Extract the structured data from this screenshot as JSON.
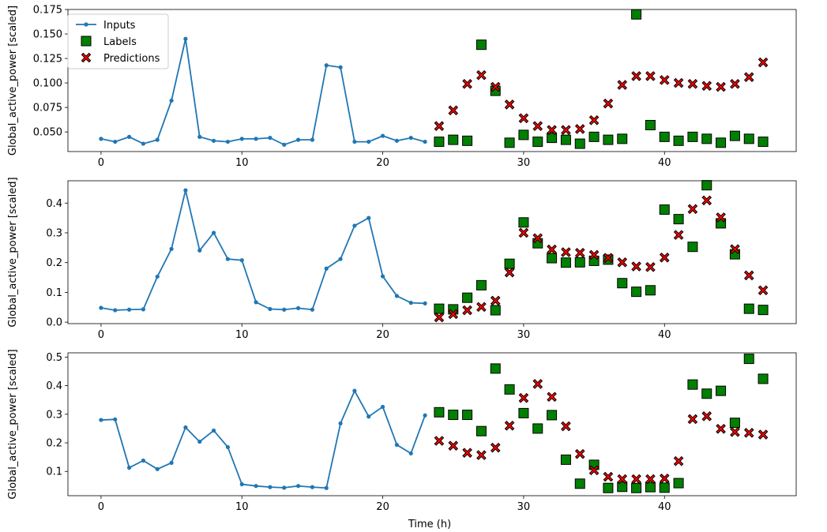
{
  "colors": {
    "inputs": "#1f77b4",
    "labels": "#008000",
    "predictions": "#ff0000",
    "edge": "#000000"
  },
  "legend": {
    "inputs": "Inputs",
    "labels": "Labels",
    "predictions": "Predictions"
  },
  "xlabel": "Time (h)",
  "chart_data": [
    {
      "type": "line",
      "ylabel": "Global_active_power [scaled]",
      "xlim": [
        -2.35,
        49.35
      ],
      "ylim": [
        0.03,
        0.175
      ],
      "xticks": [
        0,
        10,
        20,
        30,
        40
      ],
      "yticks": [
        0.05,
        0.075,
        0.1,
        0.125,
        0.15,
        0.175
      ],
      "ytick_labels": [
        "0.050",
        "0.075",
        "0.100",
        "0.125",
        "0.150",
        "0.175"
      ],
      "series": [
        {
          "name": "Inputs",
          "x": [
            0,
            1,
            2,
            3,
            4,
            5,
            6,
            7,
            8,
            9,
            10,
            11,
            12,
            13,
            14,
            15,
            16,
            17,
            18,
            19,
            20,
            21,
            22,
            23
          ],
          "values": [
            0.043,
            0.04,
            0.045,
            0.038,
            0.042,
            0.082,
            0.145,
            0.045,
            0.041,
            0.04,
            0.043,
            0.043,
            0.044,
            0.037,
            0.042,
            0.042,
            0.118,
            0.116,
            0.04,
            0.04,
            0.046,
            0.041,
            0.044,
            0.04
          ]
        },
        {
          "name": "Labels",
          "x": [
            24,
            25,
            26,
            27,
            28,
            29,
            30,
            31,
            32,
            33,
            34,
            35,
            36,
            37,
            38,
            39,
            40,
            41,
            42,
            43,
            44,
            45,
            46,
            47
          ],
          "values": [
            0.04,
            0.042,
            0.041,
            0.139,
            0.092,
            0.039,
            0.047,
            0.04,
            0.044,
            0.042,
            0.038,
            0.045,
            0.042,
            0.043,
            0.17,
            0.057,
            0.045,
            0.041,
            0.045,
            0.043,
            0.039,
            0.046,
            0.043,
            0.04
          ]
        },
        {
          "name": "Predictions",
          "x": [
            24,
            25,
            26,
            27,
            28,
            29,
            30,
            31,
            32,
            33,
            34,
            35,
            36,
            37,
            38,
            39,
            40,
            41,
            42,
            43,
            44,
            45,
            46,
            47
          ],
          "values": [
            0.056,
            0.072,
            0.099,
            0.108,
            0.096,
            0.078,
            0.064,
            0.056,
            0.052,
            0.052,
            0.053,
            0.062,
            0.079,
            0.098,
            0.107,
            0.107,
            0.103,
            0.1,
            0.099,
            0.097,
            0.096,
            0.099,
            0.106,
            0.121
          ]
        }
      ]
    },
    {
      "type": "line",
      "ylabel": "Global_active_power [scaled]",
      "xlim": [
        -2.35,
        49.35
      ],
      "ylim": [
        -0.005,
        0.475
      ],
      "xticks": [
        0,
        10,
        20,
        30,
        40
      ],
      "yticks": [
        0.0,
        0.1,
        0.2,
        0.3,
        0.4
      ],
      "ytick_labels": [
        "0.0",
        "0.1",
        "0.2",
        "0.3",
        "0.4"
      ],
      "series": [
        {
          "name": "Inputs",
          "x": [
            0,
            1,
            2,
            3,
            4,
            5,
            6,
            7,
            8,
            9,
            10,
            11,
            12,
            13,
            14,
            15,
            16,
            17,
            18,
            19,
            20,
            21,
            22,
            23
          ],
          "values": [
            0.048,
            0.04,
            0.042,
            0.043,
            0.153,
            0.246,
            0.443,
            0.241,
            0.3,
            0.212,
            0.208,
            0.067,
            0.044,
            0.042,
            0.047,
            0.042,
            0.18,
            0.212,
            0.324,
            0.35,
            0.154,
            0.088,
            0.065,
            0.063
          ]
        },
        {
          "name": "Labels",
          "x": [
            24,
            25,
            26,
            27,
            28,
            29,
            30,
            31,
            32,
            33,
            34,
            35,
            36,
            37,
            38,
            39,
            40,
            41,
            42,
            43,
            44,
            45,
            46,
            47
          ],
          "values": [
            0.045,
            0.043,
            0.082,
            0.124,
            0.04,
            0.196,
            0.335,
            0.265,
            0.215,
            0.2,
            0.201,
            0.206,
            0.21,
            0.131,
            0.102,
            0.107,
            0.378,
            0.346,
            0.253,
            0.46,
            0.332,
            0.228,
            0.045,
            0.041
          ]
        },
        {
          "name": "Predictions",
          "x": [
            24,
            25,
            26,
            27,
            28,
            29,
            30,
            31,
            32,
            33,
            34,
            35,
            36,
            37,
            38,
            39,
            40,
            41,
            42,
            43,
            44,
            45,
            46,
            47
          ],
          "values": [
            0.016,
            0.027,
            0.04,
            0.051,
            0.072,
            0.167,
            0.3,
            0.282,
            0.244,
            0.235,
            0.233,
            0.226,
            0.216,
            0.201,
            0.187,
            0.185,
            0.217,
            0.293,
            0.38,
            0.409,
            0.352,
            0.245,
            0.157,
            0.107
          ]
        }
      ]
    },
    {
      "type": "line",
      "ylabel": "Global_active_power [scaled]",
      "xlim": [
        -2.35,
        49.35
      ],
      "ylim": [
        0.015,
        0.515
      ],
      "xticks": [
        0,
        10,
        20,
        30,
        40
      ],
      "yticks": [
        0.1,
        0.2,
        0.3,
        0.4,
        0.5
      ],
      "ytick_labels": [
        "0.1",
        "0.2",
        "0.3",
        "0.4",
        "0.5"
      ],
      "series": [
        {
          "name": "Inputs",
          "x": [
            0,
            1,
            2,
            3,
            4,
            5,
            6,
            7,
            8,
            9,
            10,
            11,
            12,
            13,
            14,
            15,
            16,
            17,
            18,
            19,
            20,
            21,
            22,
            23
          ],
          "values": [
            0.28,
            0.282,
            0.113,
            0.138,
            0.108,
            0.13,
            0.254,
            0.204,
            0.243,
            0.185,
            0.055,
            0.049,
            0.045,
            0.043,
            0.049,
            0.045,
            0.042,
            0.268,
            0.382,
            0.292,
            0.326,
            0.193,
            0.163,
            0.296
          ]
        },
        {
          "name": "Labels",
          "x": [
            24,
            25,
            26,
            27,
            28,
            29,
            30,
            31,
            32,
            33,
            34,
            35,
            36,
            37,
            38,
            39,
            40,
            41,
            42,
            43,
            44,
            45,
            46,
            47
          ],
          "values": [
            0.307,
            0.298,
            0.298,
            0.241,
            0.46,
            0.387,
            0.304,
            0.25,
            0.297,
            0.141,
            0.057,
            0.123,
            0.042,
            0.046,
            0.042,
            0.045,
            0.043,
            0.059,
            0.404,
            0.372,
            0.382,
            0.27,
            0.494,
            0.424
          ]
        },
        {
          "name": "Predictions",
          "x": [
            24,
            25,
            26,
            27,
            28,
            29,
            30,
            31,
            32,
            33,
            34,
            35,
            36,
            37,
            38,
            39,
            40,
            41,
            42,
            43,
            44,
            45,
            46,
            47
          ],
          "values": [
            0.207,
            0.19,
            0.165,
            0.157,
            0.183,
            0.26,
            0.357,
            0.406,
            0.361,
            0.258,
            0.161,
            0.104,
            0.081,
            0.073,
            0.073,
            0.073,
            0.075,
            0.136,
            0.283,
            0.293,
            0.249,
            0.238,
            0.235,
            0.229
          ]
        }
      ]
    }
  ]
}
